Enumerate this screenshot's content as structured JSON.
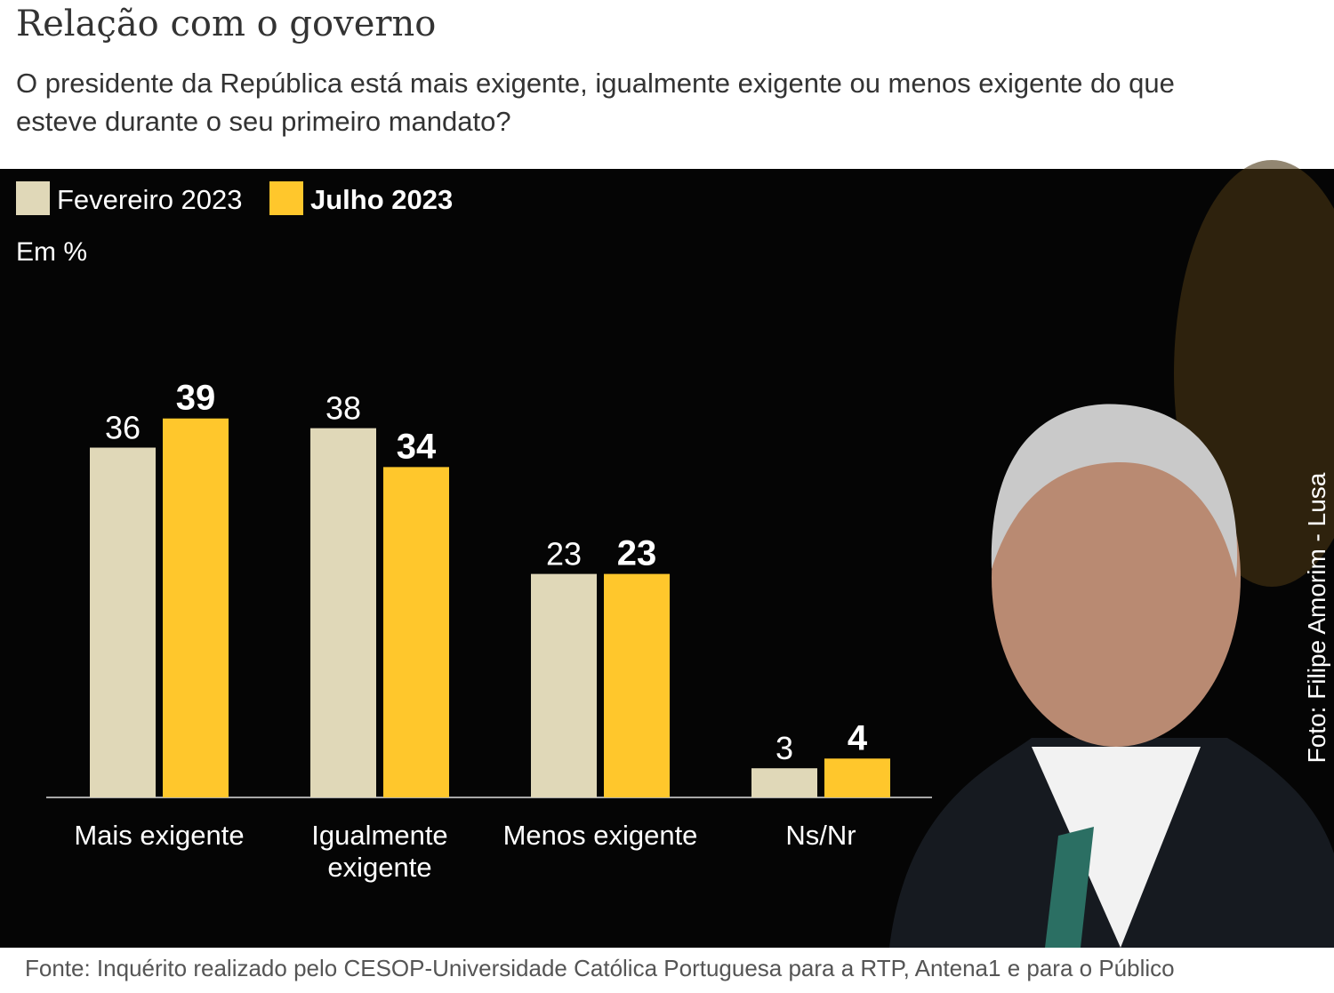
{
  "chart_data": {
    "type": "bar",
    "title": "Relação com o governo",
    "subtitle": "O presidente da República está mais exigente, igualmente exigente ou menos exigente do que esteve durante o seu primeiro mandato?",
    "unit_note": "Em %",
    "categories": [
      "Mais exigente",
      "Igualmente exigente",
      "Menos exigente",
      "Ns/Nr"
    ],
    "series": [
      {
        "name": "Fevereiro 2023",
        "color": "#e0d8b8",
        "values": [
          36,
          38,
          23,
          3
        ]
      },
      {
        "name": "Julho 2023",
        "color": "#ffc72c",
        "values": [
          39,
          34,
          23,
          4
        ]
      }
    ],
    "photo_credit": "Foto: Filipe Amorim - Lusa",
    "source": "Fonte: Inquérito realizado pelo CESOP-Universidade Católica Portuguesa para a RTP,  Antena1 e para o Público"
  }
}
